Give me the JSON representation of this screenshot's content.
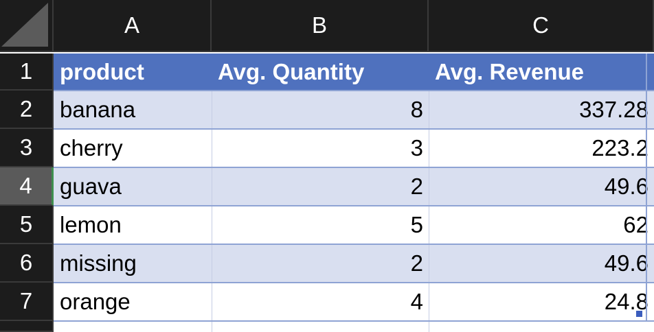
{
  "sheet": {
    "columns": [
      "A",
      "B",
      "C"
    ],
    "rows": [
      "1",
      "2",
      "3",
      "4",
      "5",
      "6",
      "7"
    ],
    "selected_row": "4",
    "header": [
      "product",
      "Avg. Quantity",
      "Avg. Revenue"
    ],
    "data": [
      [
        "banana",
        "8",
        "337.28"
      ],
      [
        "cherry",
        "3",
        "223.2"
      ],
      [
        "guava",
        "2",
        "49.6"
      ],
      [
        "lemon",
        "5",
        "62"
      ],
      [
        "missing",
        "2",
        "49.6"
      ],
      [
        "orange",
        "4",
        "24.8"
      ]
    ]
  },
  "colors": {
    "header_fill": "#4f71be",
    "band_fill": "#d9dff0",
    "row_header_bg": "#1c1c1c",
    "selected_row_header_bg": "#5a5a5a"
  },
  "icons": {
    "corner": "select-all-icon",
    "fill_handle": "fill-handle-icon"
  }
}
